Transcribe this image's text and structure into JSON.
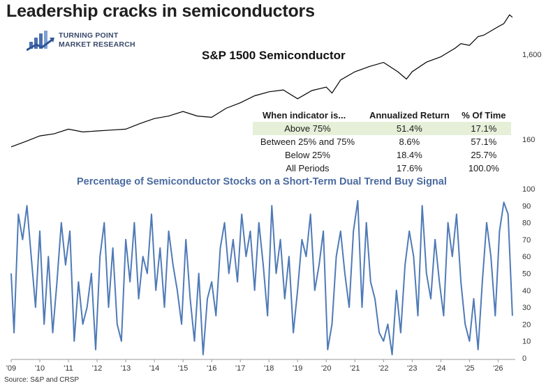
{
  "title": "Leadership cracks in semiconductors",
  "brand": {
    "line1": "TURNING POINT",
    "line2": "MARKET RESEARCH"
  },
  "source": "Source: S&P and CRSP",
  "table": {
    "headers": [
      "When indicator is...",
      "Annualized Return",
      "% Of Time"
    ],
    "rows": [
      [
        "Above 75%",
        "51.4%",
        "17.1%"
      ],
      [
        "Between 25% and 75%",
        "8.6%",
        "57.1%"
      ],
      [
        "Below 25%",
        "18.4%",
        "25.7%"
      ],
      [
        "All Periods",
        "17.6%",
        "100.0%"
      ]
    ]
  },
  "colors": {
    "price": "#000000",
    "indicator": "#4f7ab7",
    "subtitle": "#4a6aa0",
    "highlight": "#e6efd8",
    "logo": "#4a6fb0"
  },
  "chart_data": [
    {
      "type": "line",
      "title": "S&P 1500 Semiconductor",
      "scale": "log",
      "y_ticks": [
        "1,600",
        "160"
      ],
      "x": [
        2009.0,
        2009.5,
        2010.0,
        2010.5,
        2011.0,
        2011.5,
        2012.0,
        2012.5,
        2013.0,
        2013.5,
        2014.0,
        2014.5,
        2015.0,
        2015.5,
        2016.0,
        2016.5,
        2017.0,
        2017.5,
        2018.0,
        2018.5,
        2019.0,
        2019.5,
        2020.0,
        2020.2,
        2020.5,
        2021.0,
        2021.5,
        2022.0,
        2022.5,
        2022.8,
        2023.0,
        2023.5,
        2024.0,
        2024.5,
        2024.7,
        2025.0,
        2025.3,
        2025.5,
        2026.0,
        2026.2,
        2026.4,
        2026.5
      ],
      "values": [
        130,
        150,
        175,
        185,
        210,
        195,
        200,
        205,
        210,
        245,
        280,
        300,
        340,
        300,
        290,
        370,
        430,
        520,
        580,
        610,
        480,
        600,
        660,
        560,
        800,
        1000,
        1150,
        1290,
        1000,
        820,
        1000,
        1300,
        1500,
        1900,
        2150,
        2050,
        2600,
        2700,
        3400,
        3700,
        4700,
        4400
      ],
      "series": []
    },
    {
      "type": "line",
      "title": "Percentage of Semiconductor Stocks on a Short-Term Dual Trend Buy Signal",
      "ylim": [
        0,
        100
      ],
      "y_ticks": [
        0,
        10,
        20,
        30,
        40,
        50,
        60,
        70,
        80,
        90,
        100
      ],
      "x_ticks": [
        "'09",
        "'10",
        "'11",
        "'12",
        "'13",
        "'14",
        "'15",
        "'16",
        "'17",
        "'18",
        "'19",
        "'20",
        "'21",
        "'22",
        "'23",
        "'24",
        "'25",
        "'26"
      ],
      "x": [
        2009.0,
        2009.1,
        2009.25,
        2009.4,
        2009.55,
        2009.7,
        2009.85,
        2010.0,
        2010.15,
        2010.3,
        2010.45,
        2010.6,
        2010.75,
        2010.9,
        2011.05,
        2011.2,
        2011.35,
        2011.5,
        2011.65,
        2011.8,
        2011.95,
        2012.1,
        2012.25,
        2012.4,
        2012.55,
        2012.7,
        2012.85,
        2013.0,
        2013.15,
        2013.3,
        2013.45,
        2013.6,
        2013.75,
        2013.9,
        2014.05,
        2014.2,
        2014.35,
        2014.5,
        2014.65,
        2014.8,
        2014.95,
        2015.1,
        2015.25,
        2015.4,
        2015.55,
        2015.7,
        2015.85,
        2016.0,
        2016.15,
        2016.3,
        2016.45,
        2016.6,
        2016.75,
        2016.9,
        2017.05,
        2017.2,
        2017.35,
        2017.5,
        2017.65,
        2017.8,
        2017.95,
        2018.1,
        2018.25,
        2018.4,
        2018.55,
        2018.7,
        2018.85,
        2019.0,
        2019.15,
        2019.3,
        2019.45,
        2019.6,
        2019.75,
        2019.9,
        2020.05,
        2020.2,
        2020.35,
        2020.5,
        2020.65,
        2020.8,
        2020.95,
        2021.1,
        2021.25,
        2021.4,
        2021.55,
        2021.7,
        2021.85,
        2022.0,
        2022.15,
        2022.3,
        2022.45,
        2022.6,
        2022.75,
        2022.9,
        2023.05,
        2023.2,
        2023.35,
        2023.5,
        2023.65,
        2023.8,
        2023.95,
        2024.1,
        2024.25,
        2024.4,
        2024.55,
        2024.7,
        2024.85,
        2025.0,
        2025.15,
        2025.3,
        2025.45,
        2025.6,
        2025.75,
        2025.9,
        2026.05,
        2026.2,
        2026.35,
        2026.5
      ],
      "values": [
        50,
        15,
        85,
        70,
        90,
        60,
        30,
        75,
        20,
        60,
        15,
        45,
        80,
        55,
        75,
        10,
        45,
        20,
        30,
        50,
        5,
        60,
        80,
        30,
        65,
        20,
        10,
        70,
        45,
        80,
        35,
        60,
        50,
        85,
        40,
        65,
        30,
        75,
        55,
        40,
        20,
        70,
        35,
        10,
        50,
        2,
        35,
        45,
        25,
        65,
        80,
        50,
        70,
        45,
        85,
        60,
        75,
        40,
        80,
        55,
        25,
        90,
        50,
        70,
        35,
        60,
        15,
        40,
        70,
        60,
        85,
        40,
        55,
        75,
        5,
        20,
        60,
        75,
        50,
        30,
        75,
        93,
        30,
        80,
        45,
        35,
        15,
        10,
        20,
        2,
        40,
        15,
        55,
        75,
        60,
        25,
        90,
        50,
        35,
        70,
        45,
        25,
        80,
        60,
        85,
        45,
        20,
        10,
        35,
        5,
        45,
        80,
        60,
        25,
        75,
        92,
        85,
        25
      ],
      "series": []
    }
  ]
}
